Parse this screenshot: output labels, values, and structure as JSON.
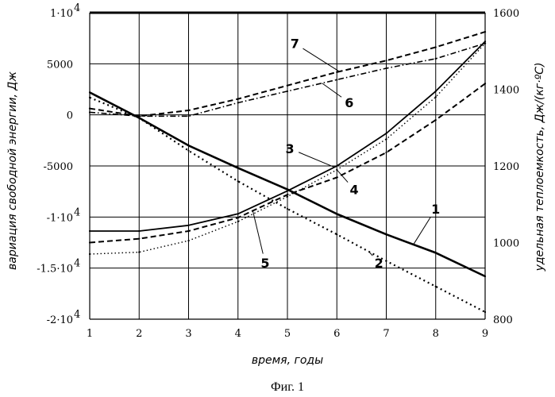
{
  "chart_data": {
    "type": "line",
    "xlabel": "время, годы",
    "ylabel_left": "вариация свободной энергии, Дж",
    "ylabel_right": "удельная теплоемкость, Дж/(кг·ºС)",
    "caption": "Фиг. 1",
    "x": [
      1,
      2,
      3,
      4,
      5,
      6,
      7,
      8,
      9
    ],
    "xlim": [
      1,
      9
    ],
    "ylim_left": [
      -20000,
      10000
    ],
    "ylim_right": [
      800,
      1600
    ],
    "x_ticks": [
      "1",
      "2",
      "3",
      "4",
      "5",
      "6",
      "7",
      "8",
      "9"
    ],
    "y_ticks_left": [
      {
        "value": 10000,
        "mant": "1·10",
        "exp": "4"
      },
      {
        "value": 5000,
        "mant": "5000",
        "exp": ""
      },
      {
        "value": 0,
        "mant": "0",
        "exp": ""
      },
      {
        "value": -5000,
        "mant": "-5000",
        "exp": ""
      },
      {
        "value": -10000,
        "mant": "-1·10",
        "exp": "4"
      },
      {
        "value": -15000,
        "mant": "-1.5·10",
        "exp": "4"
      },
      {
        "value": -20000,
        "mant": "-2·10",
        "exp": "4"
      }
    ],
    "y_ticks_right": [
      "1600",
      "1400",
      "1200",
      "1000",
      "800"
    ],
    "grid": true,
    "series": [
      {
        "name": "1",
        "axis": "left",
        "style": "solid-thick",
        "values": [
          2200,
          -300,
          -3000,
          -5200,
          -7300,
          -9700,
          -11700,
          -13500,
          -15800
        ]
      },
      {
        "name": "2",
        "axis": "left",
        "style": "dotted",
        "values": [
          1700,
          -300,
          -3500,
          -6500,
          -9200,
          -11700,
          -14300,
          -16800,
          -19300
        ]
      },
      {
        "name": "3",
        "axis": "right",
        "style": "solid",
        "values": [
          1030,
          1030,
          1045,
          1075,
          1135,
          1200,
          1285,
          1395,
          1525
        ]
      },
      {
        "name": "4",
        "axis": "right",
        "style": "dashed",
        "values": [
          1000,
          1010,
          1030,
          1065,
          1125,
          1170,
          1235,
          1320,
          1415
        ]
      },
      {
        "name": "5",
        "axis": "right",
        "style": "dotted-fine",
        "values": [
          970,
          975,
          1005,
          1055,
          1120,
          1190,
          1270,
          1380,
          1520
        ]
      },
      {
        "name": "6",
        "axis": "right",
        "style": "dashdot",
        "values": [
          1340,
          1330,
          1330,
          1365,
          1395,
          1425,
          1455,
          1480,
          1520
        ]
      },
      {
        "name": "7",
        "axis": "right",
        "style": "dashed",
        "values": [
          1350,
          1330,
          1345,
          1375,
          1410,
          1445,
          1475,
          1510,
          1550
        ]
      }
    ],
    "annotations": [
      {
        "text": "1",
        "x": 8.0,
        "y_left": -9200,
        "target_series": 0,
        "target_x": 7.55
      },
      {
        "text": "2",
        "x": 6.85,
        "y_left": -14500,
        "target_series": 1,
        "target_x": 6.65
      },
      {
        "text": "3",
        "x": 5.05,
        "y_left": -3300,
        "target_series": 2,
        "target_x": 5.95
      },
      {
        "text": "4",
        "x": 6.35,
        "y_left": -7300,
        "target_series": 4,
        "target_x": 6.0
      },
      {
        "text": "5",
        "x": 4.55,
        "y_left": -14500,
        "target_series": 3,
        "target_x": 4.3
      },
      {
        "text": "6",
        "x": 6.25,
        "y_left": 1200,
        "target_series": 5,
        "target_x": 5.7
      },
      {
        "text": "7",
        "x": 5.15,
        "y_left": 7000,
        "target_series": 6,
        "target_x": 6.05
      }
    ]
  }
}
